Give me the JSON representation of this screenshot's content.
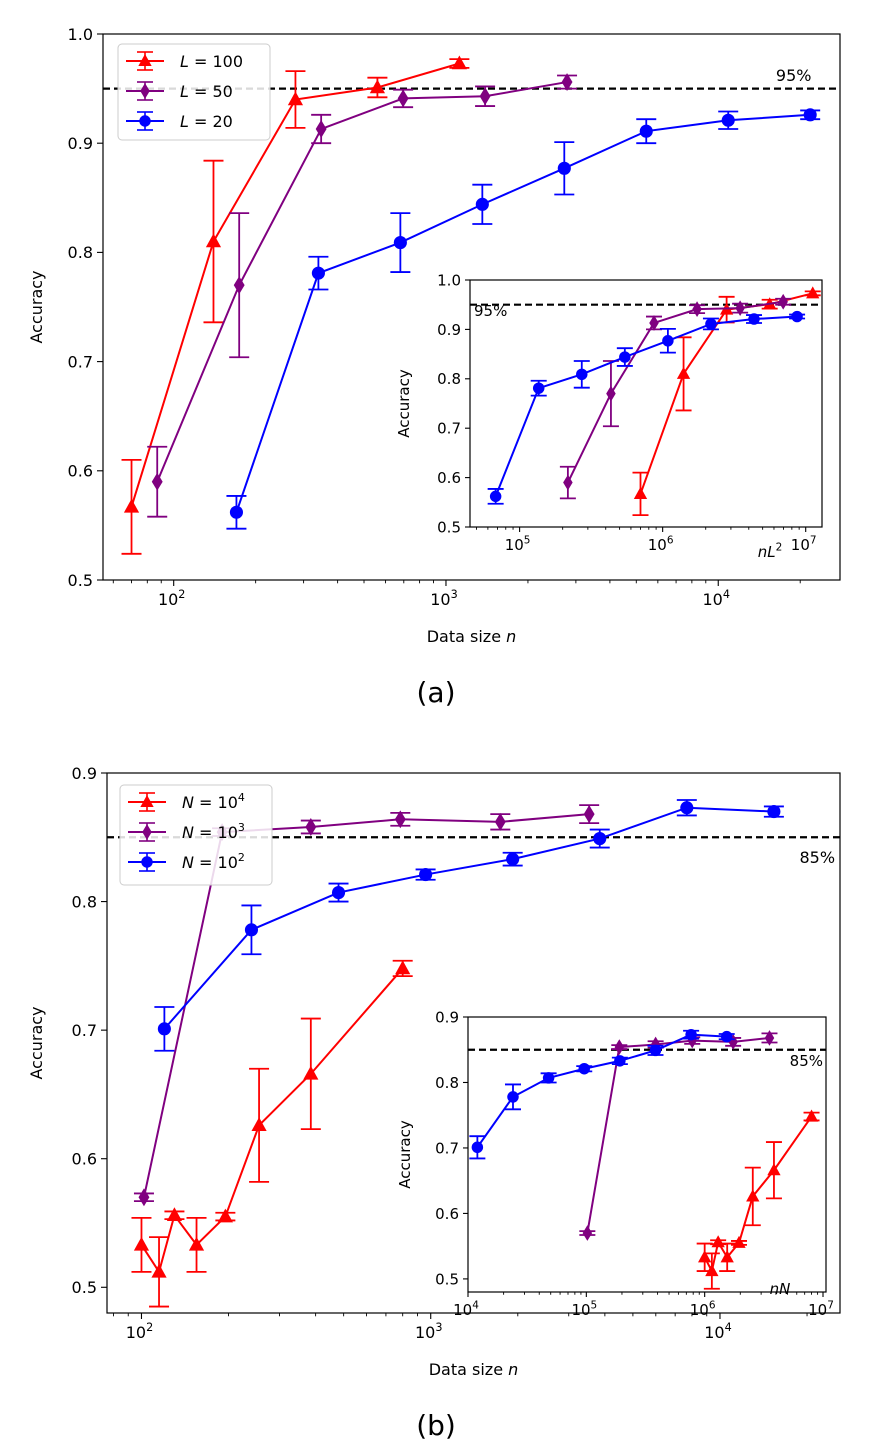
{
  "colors": {
    "red": "#ff0000",
    "purple": "#800080",
    "blue": "#0000ff",
    "ref": "#000000"
  },
  "chart_data": [
    {
      "id": "a-main",
      "type": "line",
      "title": "",
      "caption": "(a)",
      "xlabel": "Data size",
      "xlabel_var": "n",
      "ylabel": "Accuracy",
      "xscale": "log",
      "xlim": [
        55,
        28000
      ],
      "ylim": [
        0.5,
        1.0
      ],
      "xticks": [
        {
          "v": 100,
          "b": "10",
          "e": "2"
        },
        {
          "v": 1000,
          "b": "10",
          "e": "3"
        },
        {
          "v": 10000,
          "b": "10",
          "e": "4"
        }
      ],
      "yticks": [
        {
          "v": 0.5,
          "label": "0.5"
        },
        {
          "v": 0.6,
          "label": "0.6"
        },
        {
          "v": 0.7,
          "label": "0.7"
        },
        {
          "v": 0.8,
          "label": "0.8"
        },
        {
          "v": 0.9,
          "label": "0.9"
        },
        {
          "v": 1.0,
          "label": "1.0"
        }
      ],
      "hline": {
        "y": 0.95,
        "label": "95%",
        "label_at": [
          22000,
          0.957
        ],
        "label_anchor": "end"
      },
      "legend": {
        "position": "top-left",
        "entries": [
          {
            "var": "L",
            "val": "100",
            "color": "red",
            "marker": "triangle"
          },
          {
            "var": "L",
            "val": "50",
            "color": "purple",
            "marker": "diamond"
          },
          {
            "var": "L",
            "val": "20",
            "color": "blue",
            "marker": "circle"
          }
        ]
      },
      "series": [
        {
          "name": "L = 100",
          "color": "red",
          "marker": "triangle",
          "x": [
            70,
            140,
            280,
            560,
            1120
          ],
          "y": [
            0.567,
            0.81,
            0.94,
            0.951,
            0.973
          ],
          "err": [
            0.043,
            0.074,
            0.026,
            0.009,
            0.004
          ]
        },
        {
          "name": "L = 50",
          "color": "purple",
          "marker": "diamond",
          "x": [
            87,
            174,
            348,
            696,
            1392,
            2784
          ],
          "y": [
            0.59,
            0.77,
            0.913,
            0.941,
            0.943,
            0.956
          ],
          "err": [
            0.032,
            0.066,
            0.013,
            0.008,
            0.009,
            0.006
          ]
        },
        {
          "name": "L = 20",
          "color": "blue",
          "marker": "circle",
          "x": [
            170,
            340,
            680,
            1360,
            2720,
            5440,
            10880,
            21760
          ],
          "y": [
            0.562,
            0.781,
            0.809,
            0.844,
            0.877,
            0.911,
            0.921,
            0.926
          ],
          "err": [
            0.015,
            0.015,
            0.027,
            0.018,
            0.024,
            0.011,
            0.008,
            0.004
          ]
        }
      ]
    },
    {
      "id": "a-inset",
      "type": "line",
      "title": "",
      "xlabel": "",
      "xlabel_inside_var": "nL",
      "xlabel_inside_sup": "2",
      "ylabel": "Accuracy",
      "xscale": "log",
      "xlim": [
        45000,
        13000000
      ],
      "ylim": [
        0.5,
        1.0
      ],
      "xticks": [
        {
          "v": 100000,
          "b": "10",
          "e": "5"
        },
        {
          "v": 1000000,
          "b": "10",
          "e": "6"
        },
        {
          "v": 10000000,
          "b": "10",
          "e": "7"
        }
      ],
      "yticks": [
        {
          "v": 0.5,
          "label": "0.5"
        },
        {
          "v": 0.6,
          "label": "0.6"
        },
        {
          "v": 0.7,
          "label": "0.7"
        },
        {
          "v": 0.8,
          "label": "0.8"
        },
        {
          "v": 0.9,
          "label": "0.9"
        },
        {
          "v": 1.0,
          "label": "1.0"
        }
      ],
      "hline": {
        "y": 0.95,
        "label": "95%",
        "label_at": [
          48000,
          0.927
        ],
        "label_anchor": "start"
      },
      "series": [
        {
          "name": "L = 100",
          "color": "red",
          "marker": "triangle",
          "x": [
            700000,
            1400000,
            2800000,
            5600000,
            11200000
          ],
          "y": [
            0.567,
            0.81,
            0.94,
            0.951,
            0.973
          ],
          "err": [
            0.043,
            0.074,
            0.026,
            0.009,
            0.004
          ]
        },
        {
          "name": "L = 50",
          "color": "purple",
          "marker": "diamond",
          "x": [
            217500,
            435000,
            870000,
            1740000,
            3480000,
            6960000
          ],
          "y": [
            0.59,
            0.77,
            0.913,
            0.941,
            0.943,
            0.956
          ],
          "err": [
            0.032,
            0.066,
            0.013,
            0.008,
            0.009,
            0.006
          ]
        },
        {
          "name": "L = 20",
          "color": "blue",
          "marker": "circle",
          "x": [
            68000,
            136000,
            272000,
            544000,
            1088000,
            2176000,
            4352000,
            8704000
          ],
          "y": [
            0.562,
            0.781,
            0.809,
            0.844,
            0.877,
            0.911,
            0.921,
            0.926
          ],
          "err": [
            0.015,
            0.015,
            0.027,
            0.018,
            0.024,
            0.011,
            0.008,
            0.004
          ]
        }
      ]
    },
    {
      "id": "b-main",
      "type": "line",
      "title": "",
      "caption": "(b)",
      "xlabel": "Data size",
      "xlabel_var": "n",
      "ylabel": "Accuracy",
      "xscale": "log",
      "xlim": [
        76,
        26000
      ],
      "ylim": [
        0.48,
        0.9
      ],
      "xticks": [
        {
          "v": 100,
          "b": "10",
          "e": "2"
        },
        {
          "v": 1000,
          "b": "10",
          "e": "3"
        },
        {
          "v": 10000,
          "b": "10",
          "e": "4"
        }
      ],
      "yticks": [
        {
          "v": 0.5,
          "label": "0.5"
        },
        {
          "v": 0.6,
          "label": "0.6"
        },
        {
          "v": 0.7,
          "label": "0.7"
        },
        {
          "v": 0.8,
          "label": "0.8"
        },
        {
          "v": 0.9,
          "label": "0.9"
        }
      ],
      "hline": {
        "y": 0.85,
        "label": "85%",
        "label_at": [
          25000,
          0.83
        ],
        "label_anchor": "end"
      },
      "legend": {
        "position": "top-left",
        "entries": [
          {
            "var": "N",
            "val": "10",
            "sup": "4",
            "color": "red",
            "marker": "triangle"
          },
          {
            "var": "N",
            "val": "10",
            "sup": "3",
            "color": "purple",
            "marker": "diamond"
          },
          {
            "var": "N",
            "val": "10",
            "sup": "2",
            "color": "blue",
            "marker": "circle"
          }
        ]
      },
      "series": [
        {
          "name": "N = 10^4",
          "color": "red",
          "marker": "triangle",
          "x": [
            100,
            115,
            130,
            155,
            195,
            255,
            385,
            800
          ],
          "y": [
            0.533,
            0.512,
            0.556,
            0.533,
            0.555,
            0.626,
            0.666,
            0.748
          ],
          "err": [
            0.021,
            0.027,
            0.003,
            0.021,
            0.003,
            0.044,
            0.043,
            0.006
          ]
        },
        {
          "name": "N = 10^3",
          "color": "purple",
          "marker": "diamond",
          "x": [
            102,
            190,
            385,
            785,
            1740,
            3530
          ],
          "y": [
            0.57,
            0.854,
            0.858,
            0.864,
            0.862,
            0.868
          ],
          "err": [
            0.003,
            0.003,
            0.005,
            0.005,
            0.006,
            0.007
          ]
        },
        {
          "name": "N = 10^2",
          "color": "blue",
          "marker": "circle",
          "x": [
            120,
            240,
            480,
            960,
            1920,
            3840,
            7680,
            15360
          ],
          "y": [
            0.701,
            0.778,
            0.807,
            0.821,
            0.833,
            0.849,
            0.873,
            0.87
          ],
          "err": [
            0.017,
            0.019,
            0.007,
            0.004,
            0.005,
            0.007,
            0.006,
            0.004
          ]
        }
      ]
    },
    {
      "id": "b-inset",
      "type": "line",
      "title": "",
      "xlabel": "",
      "xlabel_inside_var": "nN",
      "ylabel": "Accuracy",
      "xscale": "log",
      "xlim": [
        10000,
        10600000
      ],
      "ylim": [
        0.48,
        0.9
      ],
      "xticks": [
        {
          "v": 10000,
          "b": "10",
          "e": "4"
        },
        {
          "v": 100000,
          "b": "10",
          "e": "5"
        },
        {
          "v": 1000000,
          "b": "10",
          "e": "6"
        },
        {
          "v": 10000000,
          "b": "10",
          "e": "7"
        }
      ],
      "yticks": [
        {
          "v": 0.5,
          "label": "0.5"
        },
        {
          "v": 0.6,
          "label": "0.6"
        },
        {
          "v": 0.7,
          "label": "0.7"
        },
        {
          "v": 0.8,
          "label": "0.8"
        },
        {
          "v": 0.9,
          "label": "0.9"
        }
      ],
      "hline": {
        "y": 0.85,
        "label": "85%",
        "label_at": [
          10000000,
          0.825
        ],
        "label_anchor": "end"
      },
      "series": [
        {
          "name": "N = 10^4",
          "color": "red",
          "marker": "triangle",
          "x": [
            1000000,
            1150000,
            1300000,
            1550000,
            1950000,
            2550000,
            3850000,
            8000000
          ],
          "y": [
            0.533,
            0.512,
            0.556,
            0.533,
            0.555,
            0.626,
            0.666,
            0.748
          ],
          "err": [
            0.021,
            0.027,
            0.003,
            0.021,
            0.003,
            0.044,
            0.043,
            0.006
          ]
        },
        {
          "name": "N = 10^3",
          "color": "purple",
          "marker": "diamond",
          "x": [
            102000,
            190000,
            385000,
            785000,
            1740000,
            3530000
          ],
          "y": [
            0.57,
            0.854,
            0.858,
            0.864,
            0.862,
            0.868
          ],
          "err": [
            0.003,
            0.003,
            0.005,
            0.005,
            0.006,
            0.007
          ]
        },
        {
          "name": "N = 10^2",
          "color": "blue",
          "marker": "circle",
          "x": [
            12000,
            24000,
            48000,
            96000,
            192000,
            384000,
            768000,
            1536000
          ],
          "y": [
            0.701,
            0.778,
            0.807,
            0.821,
            0.833,
            0.849,
            0.873,
            0.87
          ],
          "err": [
            0.017,
            0.019,
            0.007,
            0.004,
            0.005,
            0.007,
            0.006,
            0.004
          ]
        }
      ]
    }
  ]
}
